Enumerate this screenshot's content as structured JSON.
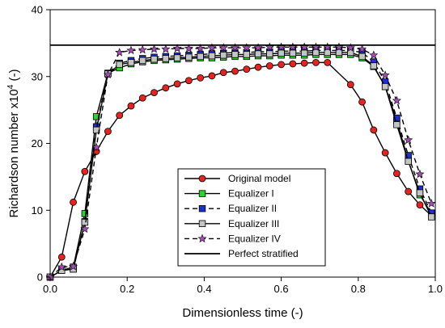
{
  "chart_data": {
    "type": "line",
    "xlabel": "Dimensionless time (-)",
    "ylabel_main": "Richardson number x10",
    "ylabel_sup": "4",
    "ylabel_unit": " (-)",
    "xlim": [
      0,
      1
    ],
    "ylim": [
      0,
      40
    ],
    "xticks": [
      0.0,
      0.2,
      0.4,
      0.6,
      0.8,
      1.0
    ],
    "xtick_labels": [
      "0.0",
      "0.2",
      "0.4",
      "0.6",
      "0.8",
      "1.0"
    ],
    "yticks": [
      0,
      10,
      20,
      30,
      40
    ],
    "ytick_labels": [
      "0",
      "10",
      "20",
      "30",
      "40"
    ],
    "grid": false,
    "legend_position": "bottom-center",
    "series": [
      {
        "name": "Original model",
        "line": "solid",
        "marker": "circle",
        "marker_color": "#e8231f",
        "points": [
          [
            0.0,
            0
          ],
          [
            0.03,
            3
          ],
          [
            0.06,
            11.2
          ],
          [
            0.09,
            15.8
          ],
          [
            0.12,
            18.8
          ],
          [
            0.15,
            21.8
          ],
          [
            0.18,
            24.2
          ],
          [
            0.21,
            25.6
          ],
          [
            0.24,
            26.8
          ],
          [
            0.27,
            27.6
          ],
          [
            0.3,
            28.3
          ],
          [
            0.33,
            28.9
          ],
          [
            0.36,
            29.4
          ],
          [
            0.39,
            29.8
          ],
          [
            0.42,
            30.1
          ],
          [
            0.45,
            30.6
          ],
          [
            0.48,
            30.8
          ],
          [
            0.51,
            31.1
          ],
          [
            0.54,
            31.4
          ],
          [
            0.57,
            31.6
          ],
          [
            0.6,
            31.8
          ],
          [
            0.63,
            31.9
          ],
          [
            0.66,
            32.0
          ],
          [
            0.69,
            32.1
          ],
          [
            0.72,
            32.1
          ],
          [
            0.78,
            28.8
          ],
          [
            0.81,
            26.2
          ],
          [
            0.84,
            22.0
          ],
          [
            0.87,
            18.6
          ],
          [
            0.9,
            15.5
          ],
          [
            0.93,
            12.8
          ],
          [
            0.96,
            10.8
          ],
          [
            0.99,
            9.2
          ]
        ]
      },
      {
        "name": "Equalizer I",
        "line": "solid",
        "marker": "square",
        "marker_color": "#2ed12e",
        "points": [
          [
            0.0,
            0
          ],
          [
            0.03,
            1
          ],
          [
            0.06,
            1.5
          ],
          [
            0.09,
            9.5
          ],
          [
            0.12,
            24
          ],
          [
            0.15,
            30.5
          ],
          [
            0.18,
            31.3
          ],
          [
            0.21,
            31.9
          ],
          [
            0.24,
            32.2
          ],
          [
            0.27,
            32.4
          ],
          [
            0.3,
            32.5
          ],
          [
            0.33,
            32.6
          ],
          [
            0.36,
            32.7
          ],
          [
            0.39,
            32.8
          ],
          [
            0.42,
            32.8
          ],
          [
            0.45,
            32.9
          ],
          [
            0.48,
            33.0
          ],
          [
            0.51,
            33.0
          ],
          [
            0.54,
            33.1
          ],
          [
            0.57,
            33.1
          ],
          [
            0.6,
            33.2
          ],
          [
            0.63,
            33.2
          ],
          [
            0.66,
            33.2
          ],
          [
            0.69,
            33.3
          ],
          [
            0.72,
            33.3
          ],
          [
            0.75,
            33.3
          ],
          [
            0.78,
            33.3
          ],
          [
            0.81,
            32.8
          ],
          [
            0.84,
            31.5
          ],
          [
            0.87,
            28.5
          ],
          [
            0.9,
            23.4
          ],
          [
            0.93,
            17.4
          ],
          [
            0.96,
            12.3
          ],
          [
            0.99,
            9.5
          ]
        ]
      },
      {
        "name": "Equalizer II",
        "line": "dashed",
        "marker": "square",
        "marker_color": "#1a2fd6",
        "points": [
          [
            0.0,
            0
          ],
          [
            0.03,
            1
          ],
          [
            0.06,
            1.2
          ],
          [
            0.09,
            8.3
          ],
          [
            0.12,
            22.5
          ],
          [
            0.15,
            30.5
          ],
          [
            0.18,
            32.0
          ],
          [
            0.21,
            32.4
          ],
          [
            0.24,
            32.7
          ],
          [
            0.27,
            32.9
          ],
          [
            0.3,
            33.0
          ],
          [
            0.33,
            33.1
          ],
          [
            0.36,
            33.2
          ],
          [
            0.39,
            33.3
          ],
          [
            0.42,
            33.4
          ],
          [
            0.45,
            33.5
          ],
          [
            0.48,
            33.6
          ],
          [
            0.51,
            33.6
          ],
          [
            0.54,
            33.7
          ],
          [
            0.57,
            33.7
          ],
          [
            0.6,
            33.8
          ],
          [
            0.63,
            33.8
          ],
          [
            0.66,
            33.8
          ],
          [
            0.69,
            33.9
          ],
          [
            0.72,
            33.9
          ],
          [
            0.75,
            33.9
          ],
          [
            0.78,
            33.9
          ],
          [
            0.81,
            33.6
          ],
          [
            0.84,
            32.2
          ],
          [
            0.87,
            29.2
          ],
          [
            0.9,
            23.8
          ],
          [
            0.93,
            18.2
          ],
          [
            0.96,
            13.2
          ],
          [
            0.99,
            9.6
          ]
        ]
      },
      {
        "name": "Equalizer III",
        "line": "solid",
        "marker": "square",
        "marker_color": "#c4c4c4",
        "points": [
          [
            0.0,
            0
          ],
          [
            0.03,
            1
          ],
          [
            0.06,
            1.2
          ],
          [
            0.09,
            8.2
          ],
          [
            0.12,
            22.0
          ],
          [
            0.15,
            30.4
          ],
          [
            0.18,
            31.8
          ],
          [
            0.21,
            32.1
          ],
          [
            0.24,
            32.4
          ],
          [
            0.27,
            32.6
          ],
          [
            0.3,
            32.7
          ],
          [
            0.33,
            32.8
          ],
          [
            0.36,
            32.9
          ],
          [
            0.39,
            33.0
          ],
          [
            0.42,
            33.1
          ],
          [
            0.45,
            33.2
          ],
          [
            0.48,
            33.3
          ],
          [
            0.51,
            33.3
          ],
          [
            0.54,
            33.4
          ],
          [
            0.57,
            33.4
          ],
          [
            0.6,
            33.5
          ],
          [
            0.63,
            33.5
          ],
          [
            0.66,
            33.5
          ],
          [
            0.69,
            33.6
          ],
          [
            0.72,
            33.6
          ],
          [
            0.75,
            33.6
          ],
          [
            0.78,
            33.6
          ],
          [
            0.81,
            33.0
          ],
          [
            0.84,
            31.6
          ],
          [
            0.87,
            28.5
          ],
          [
            0.9,
            22.8
          ],
          [
            0.93,
            17.3
          ],
          [
            0.96,
            12.6
          ],
          [
            0.99,
            9.0
          ]
        ]
      },
      {
        "name": "Equalizer IV",
        "line": "dashed",
        "marker": "star",
        "marker_color": "#a64db5",
        "points": [
          [
            0.0,
            0
          ],
          [
            0.03,
            1.5
          ],
          [
            0.06,
            1.6
          ],
          [
            0.09,
            7.2
          ],
          [
            0.12,
            19.4
          ],
          [
            0.15,
            30.3
          ],
          [
            0.18,
            33.6
          ],
          [
            0.21,
            33.9
          ],
          [
            0.24,
            34.0
          ],
          [
            0.27,
            34.1
          ],
          [
            0.3,
            34.1
          ],
          [
            0.33,
            34.2
          ],
          [
            0.36,
            34.2
          ],
          [
            0.39,
            34.2
          ],
          [
            0.42,
            34.3
          ],
          [
            0.45,
            34.3
          ],
          [
            0.48,
            34.3
          ],
          [
            0.51,
            34.3
          ],
          [
            0.54,
            34.3
          ],
          [
            0.57,
            34.4
          ],
          [
            0.6,
            34.4
          ],
          [
            0.63,
            34.4
          ],
          [
            0.66,
            34.4
          ],
          [
            0.69,
            34.4
          ],
          [
            0.72,
            34.4
          ],
          [
            0.75,
            34.4
          ],
          [
            0.78,
            34.3
          ],
          [
            0.81,
            34.1
          ],
          [
            0.84,
            33.2
          ],
          [
            0.87,
            30.2
          ],
          [
            0.9,
            26.4
          ],
          [
            0.93,
            20.5
          ],
          [
            0.96,
            15.4
          ],
          [
            0.99,
            11.0
          ]
        ]
      },
      {
        "name": "Perfect stratified",
        "line": "solid",
        "marker": "none",
        "marker_color": "#000000",
        "points": [
          [
            0.0,
            34.7
          ],
          [
            1.0,
            34.7
          ]
        ]
      }
    ]
  }
}
